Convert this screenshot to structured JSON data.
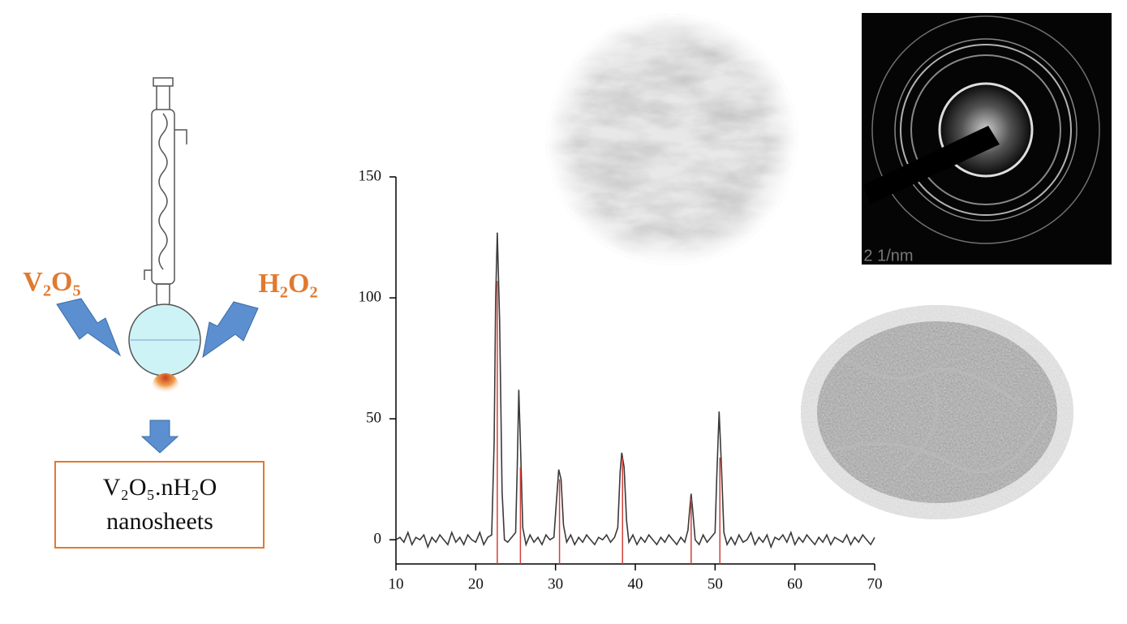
{
  "synthesis": {
    "reagents": [
      "V₂O₅",
      "H₂O₂"
    ],
    "product": [
      "V₂O₅.nH₂O",
      "nanosheets"
    ]
  },
  "images": {
    "saed_scale": "2 1/nm"
  },
  "chart_data": {
    "type": "line",
    "xlim": [
      10,
      70
    ],
    "xticks": [
      10,
      20,
      30,
      40,
      50,
      60,
      70
    ],
    "ylim": [
      -10,
      150
    ],
    "yticks": [
      0,
      50,
      100,
      150
    ],
    "series": [
      {
        "color": "#3a3a3a",
        "x": [
          10,
          10.5,
          11,
          11.5,
          12,
          12.5,
          13,
          13.5,
          14,
          14.5,
          15,
          15.5,
          16,
          16.5,
          17,
          17.5,
          18,
          18.5,
          19,
          19.5,
          20,
          20.5,
          21,
          21.5,
          22,
          22.3,
          22.5,
          22.7,
          23,
          23.3,
          23.6,
          24,
          24.5,
          25,
          25.2,
          25.4,
          25.6,
          25.9,
          26.3,
          26.8,
          27.3,
          27.8,
          28.3,
          28.8,
          29.3,
          29.8,
          30.1,
          30.4,
          30.7,
          31,
          31.4,
          31.9,
          32.4,
          32.9,
          33.4,
          33.9,
          34.4,
          34.9,
          35.4,
          35.9,
          36.4,
          36.9,
          37.4,
          37.8,
          38.1,
          38.3,
          38.6,
          38.9,
          39.2,
          39.7,
          40.2,
          40.7,
          41.2,
          41.7,
          42.2,
          42.7,
          43.2,
          43.7,
          44.2,
          44.7,
          45.2,
          45.7,
          46.2,
          46.6,
          46.8,
          47,
          47.2,
          47.5,
          48,
          48.5,
          49,
          49.5,
          50,
          50.2,
          50.5,
          50.8,
          51.1,
          51.5,
          52,
          52.5,
          53,
          53.5,
          54,
          54.5,
          55,
          55.5,
          56,
          56.5,
          57,
          57.5,
          58,
          58.5,
          59,
          59.5,
          60,
          60.5,
          61,
          61.5,
          62,
          62.5,
          63,
          63.5,
          64,
          64.5,
          65,
          65.5,
          66,
          66.5,
          67,
          67.5,
          68,
          68.5,
          69,
          69.5,
          70
        ],
        "values": [
          0,
          1,
          -1,
          3,
          -2,
          1,
          0,
          2,
          -3,
          1,
          -1,
          2,
          0,
          -2,
          3,
          -1,
          1,
          -2,
          2,
          0,
          -1,
          3,
          -2,
          1,
          2,
          40,
          100,
          127,
          90,
          20,
          0,
          -1,
          1,
          3,
          30,
          62,
          40,
          5,
          -2,
          2,
          -1,
          1,
          -2,
          2,
          0,
          1,
          15,
          29,
          25,
          6,
          -1,
          2,
          -2,
          1,
          -1,
          2,
          0,
          -2,
          1,
          0,
          2,
          -1,
          1,
          5,
          28,
          36,
          30,
          8,
          -1,
          2,
          -2,
          1,
          -1,
          2,
          0,
          -2,
          1,
          -1,
          2,
          0,
          -2,
          1,
          -1,
          4,
          12,
          19,
          12,
          0,
          -2,
          2,
          -1,
          1,
          3,
          25,
          53,
          30,
          3,
          -2,
          1,
          -2,
          2,
          -1,
          0,
          3,
          -2,
          1,
          -1,
          2,
          -3,
          1,
          0,
          2,
          -1,
          3,
          -2,
          1,
          -1,
          2,
          0,
          -2,
          1,
          -1,
          2,
          -2,
          1,
          0,
          -1,
          2,
          -2,
          1,
          -1,
          2,
          0,
          -2,
          1
        ]
      },
      {
        "color": "#d0403a",
        "style": "stem",
        "x": [
          22.7,
          25.6,
          30.5,
          38.4,
          47.0,
          50.6
        ],
        "values": [
          107,
          30,
          25,
          34,
          17,
          34
        ]
      }
    ]
  }
}
